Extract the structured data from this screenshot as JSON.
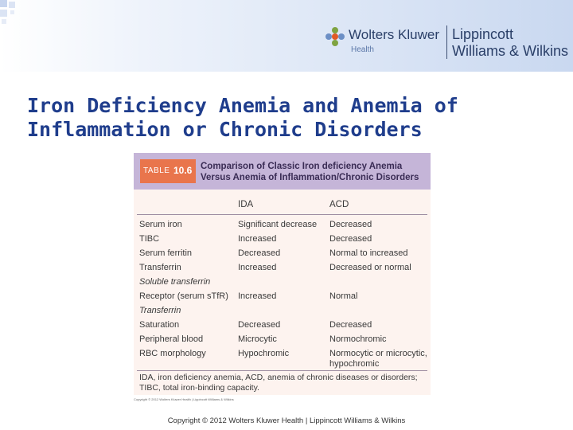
{
  "header": {
    "logo": {
      "wk_name": "Wolters Kluwer",
      "wk_sub": "Health",
      "lww_line1": "Lippincott",
      "lww_line2": "Williams & Wilkins",
      "mark_color": "#e05a26",
      "brand_color": "#2a3f68"
    }
  },
  "slide": {
    "title": "Iron Deficiency Anemia and Anemia of Inflammation or Chronic Disorders",
    "title_color": "#1f3d8c"
  },
  "table": {
    "tag_word": "TABLE",
    "tag_num": "10.6",
    "title": "Comparison of Classic Iron deficiency Anemia Versus Anemia of Inflammation/Chronic Disorders",
    "columns": [
      "",
      "IDA",
      "ACD"
    ],
    "rows": [
      {
        "label": "Serum iron",
        "ida": "Significant decrease",
        "acd": "Decreased"
      },
      {
        "label": "TIBC",
        "ida": "Increased",
        "acd": "Decreased"
      },
      {
        "label": "Serum ferritin",
        "ida": "Decreased",
        "acd": "Normal to increased"
      },
      {
        "label": "Transferrin",
        "ida": "Increased",
        "acd": "Decreased or normal"
      },
      {
        "label": "Soluble transferrin",
        "ida": "",
        "acd": ""
      },
      {
        "label": "Receptor (serum sTfR)",
        "ida": "Increased",
        "acd": "Normal"
      },
      {
        "label": "Transferrin",
        "ida": "",
        "acd": ""
      },
      {
        "label": "Saturation",
        "ida": "Decreased",
        "acd": "Decreased"
      },
      {
        "label": "Peripheral blood",
        "ida": "Microcytic",
        "acd": "Normochromic"
      },
      {
        "label": "RBC morphology",
        "ida": "Hypochromic",
        "acd": "Normocytic or microcytic, hypochromic"
      }
    ],
    "footnote": "IDA, iron deficiency anemia, ACD, anemia of chronic diseases or disorders; TIBC, total iron-binding capacity.",
    "credit": "Copyright © 2012 Wolters Kluwer Health | Lippincott Williams & Wilkins"
  },
  "footer": {
    "text": "Copyright © 2012 Wolters Kluwer Health | Lippincott Williams & Wilkins"
  }
}
